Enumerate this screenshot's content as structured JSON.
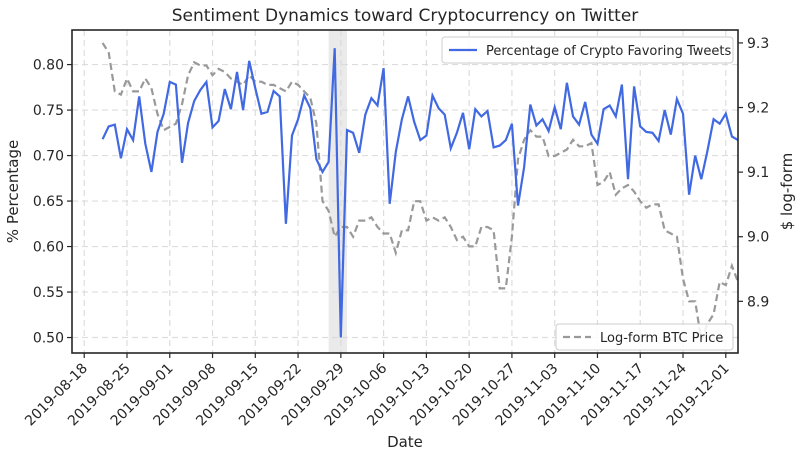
{
  "chart_data": {
    "type": "line",
    "title": "Sentiment Dynamics toward Cryptocurrency on Twitter",
    "xlabel": "Date",
    "ylabel": "% Percentage",
    "y2label": "$ log-form",
    "x_ticks": [
      "2019-08-18",
      "2019-08-25",
      "2019-09-01",
      "2019-09-08",
      "2019-09-15",
      "2019-09-22",
      "2019-09-29",
      "2019-10-06",
      "2019-10-13",
      "2019-10-20",
      "2019-10-27",
      "2019-11-03",
      "2019-11-10",
      "2019-11-17",
      "2019-11-24",
      "2019-12-01"
    ],
    "x_range": [
      "2019-08-16",
      "2019-12-03"
    ],
    "ylim": [
      0.483,
      0.838
    ],
    "y_ticks": [
      0.5,
      0.55,
      0.6,
      0.65,
      0.7,
      0.75,
      0.8
    ],
    "y2lim": [
      8.82,
      9.32
    ],
    "y2_ticks": [
      8.9,
      9.0,
      9.1,
      9.2,
      9.3
    ],
    "grid": true,
    "highlight_span": [
      "2019-09-27",
      "2019-09-30"
    ],
    "start_date": "2019-08-21",
    "series": [
      {
        "name": "Percentage of Crypto Favoring Tweets",
        "axis": "left",
        "color": "#4169e1",
        "style": "solid",
        "legend_position": "top-right",
        "values": [
          0.718,
          0.732,
          0.734,
          0.697,
          0.729,
          0.717,
          0.765,
          0.713,
          0.682,
          0.726,
          0.746,
          0.781,
          0.778,
          0.692,
          0.736,
          0.76,
          0.772,
          0.781,
          0.731,
          0.738,
          0.773,
          0.751,
          0.792,
          0.75,
          0.804,
          0.774,
          0.746,
          0.748,
          0.771,
          0.765,
          0.625,
          0.722,
          0.74,
          0.766,
          0.752,
          0.696,
          0.682,
          0.693,
          0.818,
          0.5,
          0.728,
          0.725,
          0.703,
          0.745,
          0.763,
          0.755,
          0.796,
          0.647,
          0.704,
          0.74,
          0.765,
          0.737,
          0.717,
          0.722,
          0.766,
          0.752,
          0.745,
          0.708,
          0.725,
          0.747,
          0.707,
          0.751,
          0.743,
          0.749,
          0.709,
          0.711,
          0.717,
          0.735,
          0.645,
          0.687,
          0.756,
          0.733,
          0.74,
          0.727,
          0.753,
          0.729,
          0.78,
          0.743,
          0.734,
          0.759,
          0.723,
          0.713,
          0.751,
          0.755,
          0.743,
          0.778,
          0.674,
          0.776,
          0.732,
          0.726,
          0.725,
          0.716,
          0.75,
          0.723,
          0.762,
          0.746,
          0.657,
          0.7,
          0.674,
          0.705,
          0.74,
          0.735,
          0.746,
          0.721,
          0.717
        ]
      },
      {
        "name": "Log-form BTC Price",
        "axis": "right",
        "color": "#999999",
        "style": "dashed",
        "legend_position": "bottom-right",
        "values": [
          9.3,
          9.285,
          9.225,
          9.22,
          9.245,
          9.225,
          9.225,
          9.245,
          9.23,
          9.19,
          9.165,
          9.17,
          9.175,
          9.205,
          9.25,
          9.27,
          9.265,
          9.265,
          9.25,
          9.26,
          9.255,
          9.245,
          9.24,
          9.235,
          9.25,
          9.24,
          9.24,
          9.235,
          9.235,
          9.23,
          9.225,
          9.24,
          9.235,
          9.225,
          9.215,
          9.175,
          9.055,
          9.04,
          9.0,
          9.015,
          9.015,
          9.0,
          9.025,
          9.025,
          9.03,
          9.015,
          9.005,
          9.005,
          8.975,
          9.01,
          9.01,
          9.055,
          9.055,
          9.025,
          9.03,
          9.025,
          9.03,
          9.015,
          8.995,
          9.0,
          8.985,
          8.985,
          9.015,
          9.015,
          9.01,
          8.92,
          8.92,
          9.0,
          9.12,
          9.15,
          9.165,
          9.155,
          9.155,
          9.125,
          9.125,
          9.13,
          9.135,
          9.15,
          9.14,
          9.14,
          9.145,
          9.08,
          9.085,
          9.1,
          9.065,
          9.075,
          9.08,
          9.07,
          9.055,
          9.045,
          9.05,
          9.05,
          9.01,
          9.005,
          9.0,
          8.935,
          8.9,
          8.9,
          8.84,
          8.865,
          8.88,
          8.93,
          8.925,
          8.955,
          8.93
        ]
      }
    ]
  }
}
